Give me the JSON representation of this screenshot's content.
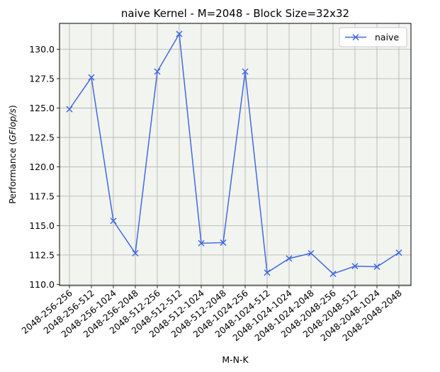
{
  "chart_data": {
    "type": "line",
    "title": "naive Kernel - M=2048 - Block Size=32x32",
    "xlabel": "M-N-K",
    "ylabel_prefix": "Performance (",
    "ylabel_italic": "GFlop/s",
    "ylabel_suffix": ")",
    "categories": [
      "2048-256-256",
      "2048-256-512",
      "2048-256-1024",
      "2048-256-2048",
      "2048-512-256",
      "2048-512-512",
      "2048-512-1024",
      "2048-512-2048",
      "2048-1024-256",
      "2048-1024-512",
      "2048-1024-1024",
      "2048-1024-2048",
      "2048-2048-256",
      "2048-2048-512",
      "2048-2048-1024",
      "2048-2048-2048"
    ],
    "series": [
      {
        "name": "naive",
        "values": [
          124.9,
          127.6,
          115.4,
          112.65,
          128.1,
          131.3,
          113.5,
          113.55,
          128.1,
          111.0,
          112.2,
          112.65,
          110.9,
          111.55,
          111.5,
          112.7
        ]
      }
    ],
    "ylim": [
      109.9,
      132.2
    ],
    "yticks": [
      110.0,
      112.5,
      115.0,
      117.5,
      120.0,
      122.5,
      125.0,
      127.5,
      130.0
    ],
    "ytick_labels": [
      "110.0",
      "112.5",
      "115.0",
      "117.5",
      "120.0",
      "122.5",
      "125.0",
      "127.5",
      "130.0"
    ],
    "grid": true,
    "legend_position": "top-right",
    "colors": {
      "line": "#4169e1",
      "plot_background": "#f2f4ef",
      "grid": "#b0b0b0"
    }
  }
}
